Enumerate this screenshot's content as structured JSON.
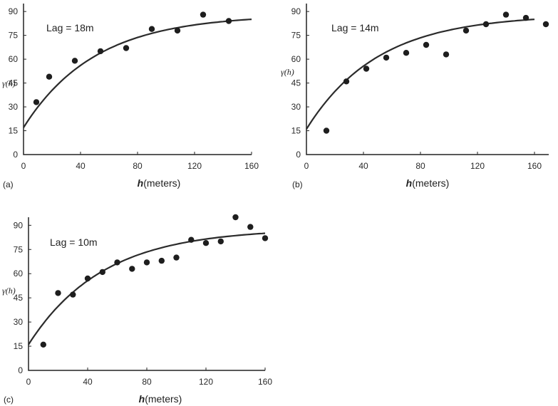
{
  "chart_data": [
    {
      "type": "scatter",
      "panel_label": "(a)",
      "annotation": "Lag = 18m",
      "xlabel": "h(meters)",
      "ylabel": "γ(h)",
      "xlim": [
        0,
        160
      ],
      "ylim": [
        0,
        95
      ],
      "xticks": [
        0,
        40,
        80,
        120,
        160
      ],
      "yticks": [
        0,
        15,
        30,
        45,
        60,
        75,
        90
      ],
      "points": [
        {
          "x": 9,
          "y": 33
        },
        {
          "x": 18,
          "y": 49
        },
        {
          "x": 36,
          "y": 59
        },
        {
          "x": 54,
          "y": 65
        },
        {
          "x": 72,
          "y": 67
        },
        {
          "x": 90,
          "y": 79
        },
        {
          "x": 108,
          "y": 78
        },
        {
          "x": 126,
          "y": 88
        },
        {
          "x": 144,
          "y": 84
        }
      ],
      "curve": {
        "model": "exponential",
        "nugget": 17,
        "sill": 88,
        "range": 50
      }
    },
    {
      "type": "scatter",
      "panel_label": "(b)",
      "annotation": "Lag = 14m",
      "xlabel": "h(meters)",
      "ylabel": "γ(h)",
      "xlim": [
        0,
        160
      ],
      "ylim": [
        0,
        95
      ],
      "xticks": [
        0,
        40,
        80,
        120,
        160
      ],
      "yticks": [
        0,
        15,
        30,
        45,
        60,
        75,
        90
      ],
      "points": [
        {
          "x": 14,
          "y": 15
        },
        {
          "x": 28,
          "y": 46
        },
        {
          "x": 42,
          "y": 54
        },
        {
          "x": 56,
          "y": 61
        },
        {
          "x": 70,
          "y": 64
        },
        {
          "x": 84,
          "y": 69
        },
        {
          "x": 98,
          "y": 63
        },
        {
          "x": 112,
          "y": 78
        },
        {
          "x": 126,
          "y": 82
        },
        {
          "x": 140,
          "y": 88
        },
        {
          "x": 154,
          "y": 86
        },
        {
          "x": 168,
          "y": 82
        }
      ],
      "curve": {
        "model": "exponential",
        "nugget": 16,
        "sill": 88,
        "range": 50
      }
    },
    {
      "type": "scatter",
      "panel_label": "(c)",
      "annotation": "Lag = 10m",
      "xlabel": "h(meters)",
      "ylabel": "γ(h)",
      "xlim": [
        0,
        160
      ],
      "ylim": [
        0,
        95
      ],
      "xticks": [
        0,
        40,
        80,
        120,
        160
      ],
      "yticks": [
        0,
        15,
        30,
        45,
        60,
        75,
        90
      ],
      "points": [
        {
          "x": 10,
          "y": 16
        },
        {
          "x": 20,
          "y": 48
        },
        {
          "x": 30,
          "y": 47
        },
        {
          "x": 40,
          "y": 57
        },
        {
          "x": 50,
          "y": 61
        },
        {
          "x": 60,
          "y": 67
        },
        {
          "x": 70,
          "y": 63
        },
        {
          "x": 80,
          "y": 67
        },
        {
          "x": 90,
          "y": 68
        },
        {
          "x": 100,
          "y": 70
        },
        {
          "x": 110,
          "y": 81
        },
        {
          "x": 120,
          "y": 79
        },
        {
          "x": 130,
          "y": 80
        },
        {
          "x": 140,
          "y": 95
        },
        {
          "x": 150,
          "y": 89
        },
        {
          "x": 160,
          "y": 82
        }
      ],
      "curve": {
        "model": "exponential",
        "nugget": 16,
        "sill": 88,
        "range": 50
      }
    }
  ]
}
